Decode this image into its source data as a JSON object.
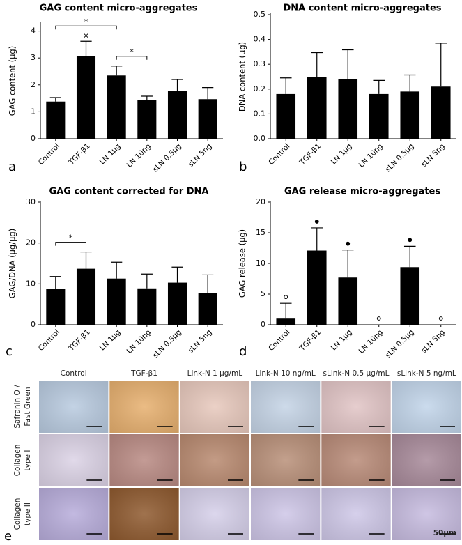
{
  "chart_data": [
    {
      "type": "bar",
      "title": "GAG content micro-aggregates",
      "panel_label": "a",
      "ylabel": "GAG content (µg)",
      "categories": [
        "Control",
        "TGF-β1",
        "LN 1µg",
        "LN 10ng",
        "sLN 0.5µg",
        "sLN 5ng"
      ],
      "values": [
        1.38,
        3.07,
        2.35,
        1.45,
        1.77,
        1.47
      ],
      "errors": [
        0.15,
        0.55,
        0.35,
        0.13,
        0.43,
        0.43
      ],
      "color": "#000000",
      "ylim": [
        0,
        4.3
      ],
      "yticks": [
        0,
        1,
        2,
        3,
        4
      ],
      "annotations": [
        {
          "text": "*",
          "from": "Control",
          "to": "LN 1µg"
        },
        {
          "text": "*",
          "from": "LN 1µg",
          "to": "LN 10ng"
        },
        {
          "text": "×",
          "at": "TGF-β1"
        }
      ]
    },
    {
      "type": "bar",
      "title": "DNA content micro-aggregates",
      "panel_label": "b",
      "ylabel": "DNA content (µg)",
      "categories": [
        "Control",
        "TGF-β1",
        "LN 1µg",
        "LN 10ng",
        "sLN 0.5µg",
        "sLN 5ng"
      ],
      "values": [
        0.18,
        0.25,
        0.24,
        0.18,
        0.19,
        0.21
      ],
      "errors": [
        0.065,
        0.097,
        0.118,
        0.055,
        0.067,
        0.175
      ],
      "color": "#000000",
      "ylim": [
        0,
        0.5
      ],
      "yticks": [
        {
          "value": 0,
          "label": "0.0"
        },
        0.1,
        0.2,
        0.3,
        0.4,
        0.5
      ]
    },
    {
      "type": "bar",
      "title": "GAG content corrected for DNA",
      "panel_label": "c",
      "ylabel": "GAG/DNA (µg/µg)",
      "categories": [
        "Control",
        "TGF-β1",
        "LN 1µg",
        "LN 10ng",
        "sLN 0.5µg",
        "sLN 5ng"
      ],
      "values": [
        8.8,
        13.7,
        11.3,
        8.9,
        10.3,
        7.8
      ],
      "errors": [
        3.0,
        4.1,
        4.0,
        3.5,
        3.8,
        4.4
      ],
      "color": "#000000",
      "ylim": [
        0,
        30
      ],
      "yticks": [
        0,
        10,
        20,
        30
      ],
      "annotations": [
        {
          "text": "*",
          "from": "Control",
          "to": "TGF-β1"
        }
      ]
    },
    {
      "type": "bar",
      "title": "GAG release micro-aggregates",
      "panel_label": "d",
      "ylabel": "GAG release (µg)",
      "categories": [
        "Control",
        "TGF-β1",
        "LN 1µg",
        "LN 10ng",
        "sLN 0.5µg",
        "sLN 5ng"
      ],
      "values": [
        1.0,
        12.1,
        7.7,
        0,
        9.4,
        0
      ],
      "errors": [
        2.5,
        3.7,
        4.5,
        0,
        3.4,
        0
      ],
      "markers": [
        "open",
        "filled",
        "filled",
        "open",
        "filled",
        "open"
      ],
      "color": "#000000",
      "ylim": [
        0,
        20
      ],
      "yticks": [
        0,
        5,
        10,
        15,
        20
      ]
    }
  ],
  "histology": {
    "panel_label": "e",
    "columns": [
      "Control",
      "TGF-β1",
      "Link-N 1 µg/mL",
      "Link-N 10 ng/mL",
      "sLink-N 0.5 µg/mL",
      "sLink-N 5 ng/mL"
    ],
    "rows": [
      [
        "Safranin O /",
        "Fast Green"
      ],
      [
        "Collagen",
        "type I"
      ],
      [
        "Collagen",
        "type II"
      ]
    ],
    "scale_bar": "50µm"
  }
}
